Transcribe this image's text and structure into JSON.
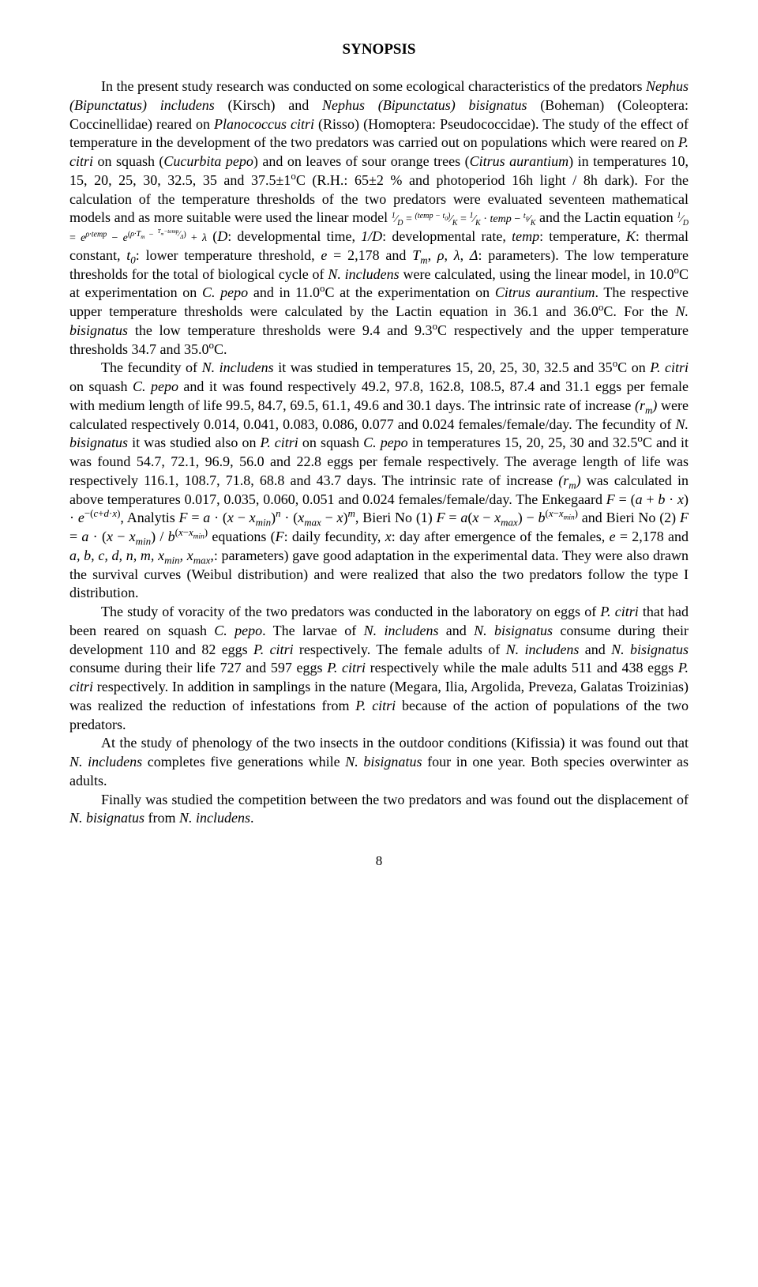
{
  "title": "SYNOPSIS",
  "pageNumber": "8",
  "paragraphs": {
    "p1": "In the present study research was conducted on some ecological characteristics of the predators <i>Nephus (Bipunctatus) includens</i> (Kirsch) and <i>Nephus (Bipunctatus) bisignatus</i> (Boheman) (Coleoptera: Coccinellidae) reared on <i>Planococcus citri</i> (Risso) (Homoptera: Pseudococcidae). The study of the effect of temperature in the development of the two predators was carried out on populations which were reared on <i>P. citri</i> on squash (<i>Cucurbita pepo</i>) and on leaves of sour orange trees (<i>Citrus aurantium</i>) in temperatures 10, 15, 20, 25, 30, 32.5, 35 and 37.5±1<sup>o</sup>C (R.H.: 65±2 % and photoperiod 16h light / 8h dark). For the calculation of the temperature thresholds of the two predators were evaluated seventeen mathematical models and as more suitable were used the linear model <span style='font-size:0.78em'><i><sup>1</sup>⁄<sub>D</sub></i> = <i><sup>(temp − t<sub>0</sub>)</sup>⁄<sub>K</sub></i> = <i><sup>1</sup>⁄<sub>K</sub></i> · <i>temp</i> − <i><sup>t<sub>0</sub></sup>⁄<sub>K</sub></i></span> and the Lactin equation <span style='font-size:0.78em'><i><sup>1</sup>⁄<sub>D</sub></i> = <i>e<sup>ρ·temp</sup></i> − <i>e</i><sup>(<i>ρ·T<sub>m</sub></i> − <i><sup>T<sub>m</sub>−temp</sup>⁄<sub>Δ</sub></i>)</sup> + <i>λ</i></span> (<i>D</i>: developmental time, <i>1/D</i>: developmental rate, <i>temp</i>: temperature, <i>K</i>: thermal constant, <i>t<sub>0</sub></i>: lower temperature threshold, <i>e</i> = 2,178 and <i>T<sub>m</sub></i>, <i>ρ</i>, <i>λ</i>, <i>Δ</i>: parameters). The low temperature thresholds for the total of biological cycle of <i>N. includens</i> were calculated, using the linear model, in 10.0<sup>o</sup>C at experimentation on <i>C. pepo</i> and in 11.0<sup>o</sup>C at the experimentation on <i>Citrus aurantium</i>. The respective upper temperature thresholds were calculated by the Lactin equation in 36.1 and 36.0<sup>o</sup>C. For the <i>N. bisignatus</i> the low temperature thresholds were 9.4 and 9.3<sup>o</sup>C respectively and the upper temperature thresholds 34.7 and 35.0<sup>o</sup>C.",
    "p2": "The fecundity of <i>N. includens</i> it was studied in temperatures 15, 20, 25, 30, 32.5 and 35<sup>o</sup>C on <i>P. citri</i> on squash <i>C. pepo</i> and it was found respectively 49.2, 97.8, 162.8, 108.5, 87.4 and 31.1 eggs per female with medium length of life 99.5, 84.7, 69.5, 61.1, 49.6 and 30.1 days. The intrinsic rate of increase <i>(r<sub>m</sub>)</i> were calculated respectively 0.014, 0.041, 0.083, 0.086, 0.077 and 0.024 females/female/day. The fecundity of <i>N. bisignatus</i> it was studied also on <i>P. citri</i> on squash <i>C. pepo</i> in temperatures 15, 20, 25, 30 and 32.5<sup>o</sup>C and it was found 54.7, 72.1, 96.9, 56.0 and 22.8 eggs per female respectively. The average length of life was respectively 116.1, 108.7, 71.8, 68.8 and 43.7 days. The intrinsic rate of increase <i>(r<sub>m</sub>)</i> was calculated in above temperatures 0.017, 0.035, 0.060, 0.051 and 0.024 females/female/day. The Enkegaard <i>F</i> = (<i>a</i> + <i>b</i> · <i>x</i>) · <i>e</i><sup>−(<i>c</i>+<i>d</i>·<i>x</i>)</sup>, Analytis <i>F</i> = <i>a</i> · (<i>x</i> − <i>x<sub>min</sub></i>)<sup><i>n</i></sup> · (<i>x<sub>max</sub></i> − <i>x</i>)<sup><i>m</i></sup>, Bieri No (1) <i>F</i> = <i>a</i>(<i>x</i> − <i>x<sub>max</sub></i>) − <i>b</i><sup>(<i>x</i>−<i>x<sub>min</sub></i>)</sup> and Bieri No (2) <i>F</i> = <i>a</i> · (<i>x</i> − <i>x<sub>min</sub></i>) / <i>b</i><sup>(<i>x</i>−<i>x<sub>min</sub></i>)</sup> equations (<i>F</i>: daily fecundity, <i>x</i>: day after emergence of the females, <i>e</i> = 2,178 and <i>a, b, c, d, n, m, x<sub>min</sub>, x<sub>max</sub></i>,: parameters) gave good adaptation in the experimental data. They were also drawn the survival curves (Weibul distribution) and were realized that also the two predators follow the type I distribution.",
    "p3": "The study of voracity of the two predators was conducted in the laboratory on eggs of <i>P. citri</i> that had been reared on squash <i>C. pepo</i>. The larvae of <i>N. includens</i> and <i>N. bisignatus</i> consume during their development 110 and 82 eggs <i>P. citri</i> respectively. The female adults of <i>N. includens</i> and <i>N. bisignatus</i> consume during their life 727 and 597 eggs <i>P. citri</i> respectively while the male adults 511 and 438 eggs <i>P. citri</i> respectively. In addition in samplings in the nature (Megara, Ilia, Argolida, Preveza, Galatas Troizinias) was realized the reduction of infestations from <i>P. citri</i> because of the action of populations of the two predators.",
    "p4": "At the study of phenology of the two insects in the outdoor conditions (Kifissia) it was found out that <i>N. includens</i> completes five generations while <i>N. bisignatus</i> four in one year. Both species overwinter as adults.",
    "p5": "Finally was studied the competition between the two predators and was found out the displacement of <i>N. bisignatus</i> from <i>N. includens</i>."
  },
  "style": {
    "background": "#ffffff",
    "textColor": "#000000",
    "fontFamily": "Times New Roman",
    "titleFontSize": 19,
    "bodyFontSize": 18,
    "pageWidth": 960
  }
}
